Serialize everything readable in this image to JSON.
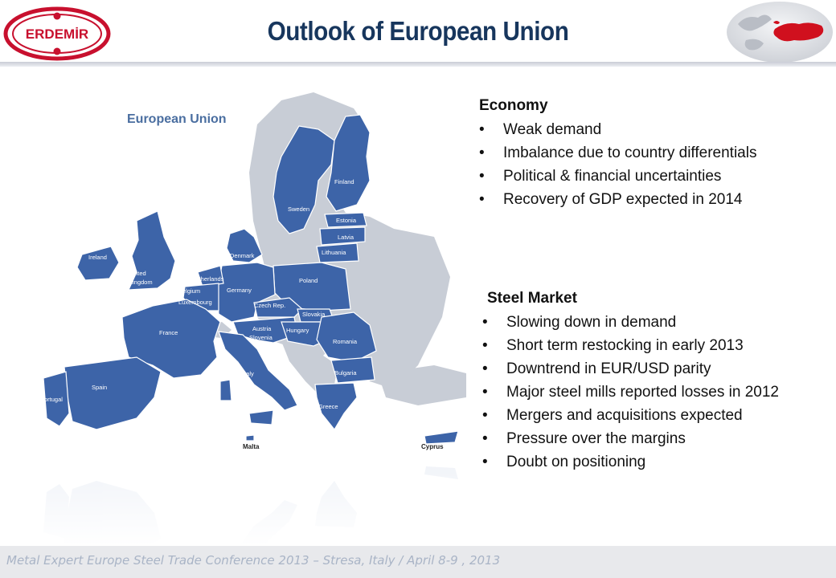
{
  "header": {
    "title": "Outlook of European Union",
    "logo_text": "ERDEMİR"
  },
  "map": {
    "title": "European Union",
    "countries": {
      "finland": "Finland",
      "sweden": "Sweden",
      "estonia": "Estonia",
      "latvia": "Latvia",
      "lithuania": "Lithuania",
      "denmark": "Denmark",
      "ireland": "Ireland",
      "uk_line1": "United",
      "uk_line2": "Kingdom",
      "netherlands": "Netherlands",
      "belgium": "Belgium",
      "luxembourg": "Luxembourg",
      "germany": "Germany",
      "poland": "Poland",
      "czech": "Czech Rep.",
      "slovakia": "Slovakia",
      "austria": "Austria",
      "slovenia": "Slovenia",
      "hungary": "Hungary",
      "romania": "Romania",
      "france": "France",
      "italy": "Italy",
      "bulgaria": "Bulgaria",
      "greece": "Greece",
      "spain": "Spain",
      "portugal": "Portugal",
      "malta": "Malta",
      "cyprus": "Cyprus"
    }
  },
  "economy": {
    "heading": "Economy",
    "bullet": "•",
    "items": [
      "Weak demand",
      "Imbalance due to country differentials",
      "Political & financial uncertainties",
      "Recovery of GDP expected in 2014"
    ]
  },
  "steel": {
    "heading": "Steel Market",
    "items": [
      "Slowing down in demand",
      "Short term restocking in early 2013",
      "Downtrend in EUR/USD parity",
      "Major steel mills reported losses in 2012",
      "Mergers and acquisitions expected",
      "Pressure over the margins",
      "Doubt on positioning"
    ]
  },
  "footer": {
    "text": "Metal Expert Europe Steel Trade Conference 2013 – Stresa, Italy / April 8-9 , 2013"
  },
  "colors": {
    "title": "#17365d",
    "eu_blue": "#3d64a8",
    "non_eu": "#c8cdd6",
    "logo_red": "#c8102e"
  }
}
